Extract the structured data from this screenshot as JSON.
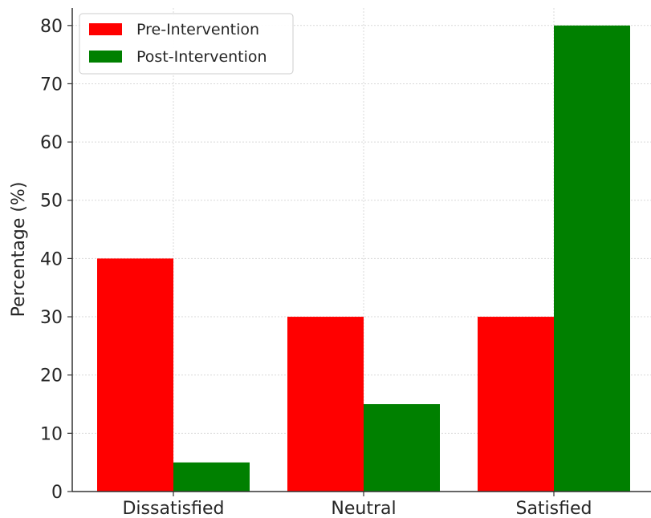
{
  "chart_data": {
    "type": "bar",
    "categories": [
      "Dissatisfied",
      "Neutral",
      "Satisfied"
    ],
    "series": [
      {
        "name": "Pre-Intervention",
        "values": [
          40,
          30,
          30
        ],
        "color": "#ff0000"
      },
      {
        "name": "Post-Intervention",
        "values": [
          5,
          15,
          80
        ],
        "color": "#008000"
      }
    ],
    "xlabel": "",
    "ylabel": "Percentage (%)",
    "ylim": [
      0,
      83
    ],
    "yticks": [
      0,
      10,
      20,
      30,
      40,
      50,
      60,
      70,
      80
    ],
    "grid": true,
    "legend_position": "top-left"
  }
}
